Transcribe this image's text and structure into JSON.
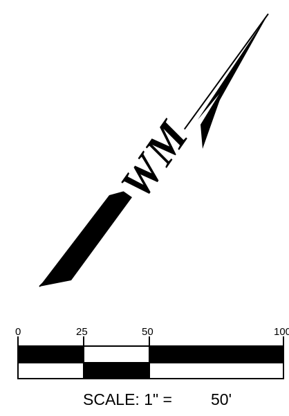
{
  "north_arrow": {
    "logo_text": "WM",
    "logo_letters": [
      "W",
      "M"
    ],
    "fill_color": "#000000"
  },
  "scale_bar": {
    "tick_labels": [
      "0",
      "25",
      "50",
      "100"
    ],
    "scale_prefix": "SCALE: 1\" =",
    "scale_value": "50'",
    "fill_color": "#000000",
    "background_color": "#ffffff"
  }
}
